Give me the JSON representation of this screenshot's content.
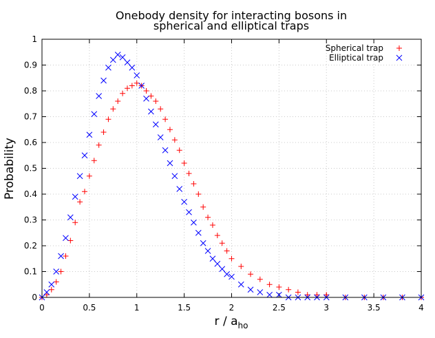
{
  "chart_data": {
    "type": "scatter",
    "title_line1": "Onebody density for interacting bosons in",
    "title_line2": "spherical and elliptical traps",
    "xlabel_main": "r / a",
    "xlabel_sub": "ho",
    "ylabel": "Probability",
    "xlim": [
      0,
      4
    ],
    "ylim": [
      0,
      1
    ],
    "xticks": [
      "0",
      "0.5",
      "1",
      "1.5",
      "2",
      "2.5",
      "3",
      "3.5",
      "4"
    ],
    "yticks": [
      "0",
      "0.1",
      "0.2",
      "0.3",
      "0.4",
      "0.5",
      "0.6",
      "0.7",
      "0.8",
      "0.9",
      "1"
    ],
    "grid": true,
    "legend_position": "top-right",
    "series": [
      {
        "name": "Spherical trap",
        "marker": "plus",
        "color": "#ff0000",
        "x": [
          0.0,
          0.05,
          0.1,
          0.15,
          0.2,
          0.25,
          0.3,
          0.35,
          0.4,
          0.45,
          0.5,
          0.55,
          0.6,
          0.65,
          0.7,
          0.75,
          0.8,
          0.85,
          0.9,
          0.95,
          1.0,
          1.05,
          1.1,
          1.15,
          1.2,
          1.25,
          1.3,
          1.35,
          1.4,
          1.45,
          1.5,
          1.55,
          1.6,
          1.65,
          1.7,
          1.75,
          1.8,
          1.85,
          1.9,
          1.95,
          2.0,
          2.1,
          2.2,
          2.3,
          2.4,
          2.5,
          2.6,
          2.7,
          2.8,
          2.9,
          3.0,
          3.2,
          3.4,
          3.6,
          3.8,
          4.0
        ],
        "y": [
          0.0,
          0.01,
          0.03,
          0.06,
          0.1,
          0.16,
          0.22,
          0.29,
          0.37,
          0.41,
          0.47,
          0.53,
          0.59,
          0.64,
          0.69,
          0.73,
          0.76,
          0.79,
          0.81,
          0.82,
          0.83,
          0.82,
          0.8,
          0.78,
          0.76,
          0.73,
          0.69,
          0.65,
          0.61,
          0.57,
          0.52,
          0.48,
          0.44,
          0.4,
          0.35,
          0.31,
          0.28,
          0.24,
          0.21,
          0.18,
          0.15,
          0.12,
          0.09,
          0.07,
          0.05,
          0.04,
          0.03,
          0.02,
          0.01,
          0.01,
          0.01,
          0.0,
          0.0,
          0.0,
          0.0,
          0.0
        ]
      },
      {
        "name": "Elliptical trap",
        "marker": "cross",
        "color": "#0000ff",
        "x": [
          0.0,
          0.05,
          0.1,
          0.15,
          0.2,
          0.25,
          0.3,
          0.35,
          0.4,
          0.45,
          0.5,
          0.55,
          0.6,
          0.65,
          0.7,
          0.75,
          0.8,
          0.85,
          0.9,
          0.95,
          1.0,
          1.05,
          1.1,
          1.15,
          1.2,
          1.25,
          1.3,
          1.35,
          1.4,
          1.45,
          1.5,
          1.55,
          1.6,
          1.65,
          1.7,
          1.75,
          1.8,
          1.85,
          1.9,
          1.95,
          2.0,
          2.1,
          2.2,
          2.3,
          2.4,
          2.5,
          2.6,
          2.7,
          2.8,
          2.9,
          3.0,
          3.2,
          3.4,
          3.6,
          3.8,
          4.0
        ],
        "y": [
          0.0,
          0.02,
          0.05,
          0.1,
          0.16,
          0.23,
          0.31,
          0.39,
          0.47,
          0.55,
          0.63,
          0.71,
          0.78,
          0.84,
          0.89,
          0.92,
          0.94,
          0.93,
          0.91,
          0.89,
          0.86,
          0.82,
          0.77,
          0.72,
          0.67,
          0.62,
          0.57,
          0.52,
          0.47,
          0.42,
          0.37,
          0.33,
          0.29,
          0.25,
          0.21,
          0.18,
          0.15,
          0.13,
          0.11,
          0.09,
          0.08,
          0.05,
          0.03,
          0.02,
          0.01,
          0.01,
          0.0,
          0.0,
          0.0,
          0.0,
          0.0,
          0.0,
          0.0,
          0.0,
          0.0,
          0.0
        ]
      }
    ]
  }
}
